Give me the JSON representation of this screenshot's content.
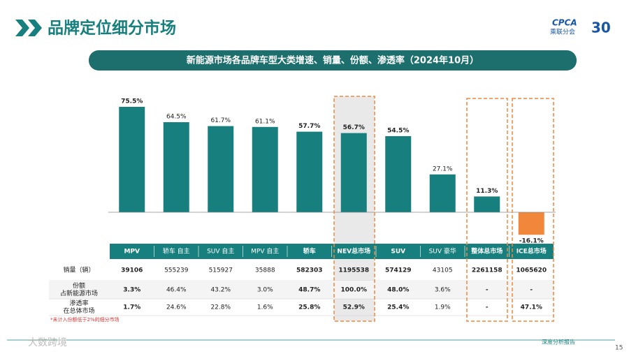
{
  "header": {
    "title": "品牌定位细分市场",
    "logo_text": "CPCA",
    "logo_cn": "乘联分会",
    "anniversary": "30",
    "subtitle": "新能源市场各品牌车型大类增速、销量、份额、渗透率（2024年10月）"
  },
  "chart_data": {
    "type": "bar",
    "categories": [
      "MPV",
      "轿车 自主",
      "SUV 自主",
      "MPV 自主",
      "轿车",
      "NEV总市场",
      "SUV",
      "SUV 豪华",
      "整体总市场",
      "ICE总市场"
    ],
    "values": [
      75.5,
      64.5,
      61.7,
      61.1,
      57.7,
      56.7,
      54.5,
      27.1,
      11.3,
      -16.1
    ],
    "value_labels": [
      "75.5%",
      "64.5%",
      "61.7%",
      "61.1%",
      "57.7%",
      "56.7%",
      "54.5%",
      "27.1%",
      "11.3%",
      "-16.1%"
    ],
    "color": "#17807e",
    "negative_color": "#f0873a"
  },
  "table": {
    "rows": [
      {
        "label": [
          "销量（辆）"
        ],
        "values": [
          39106,
          555239,
          515927,
          35888,
          582303,
          1195538,
          574129,
          43105,
          2261158,
          1065620
        ]
      },
      {
        "label": [
          "份额",
          "占新能源市场"
        ],
        "values": [
          "3.3%",
          "46.4%",
          "43.2%",
          "3.0%",
          "48.7%",
          "100.0%",
          "48.0%",
          "3.6%",
          "-",
          "-"
        ]
      },
      {
        "label": [
          "渗透率",
          "在总体市场"
        ],
        "values": [
          "1.7%",
          "24.6%",
          "22.8%",
          "1.6%",
          "25.8%",
          "52.9%",
          "25.4%",
          "1.9%",
          "-",
          "47.1%"
        ]
      }
    ],
    "note": "*未计入份额低于2%的细分市场"
  },
  "footer": {
    "report": "深度分析报告",
    "page": "15",
    "watermark": "大数跨境"
  }
}
